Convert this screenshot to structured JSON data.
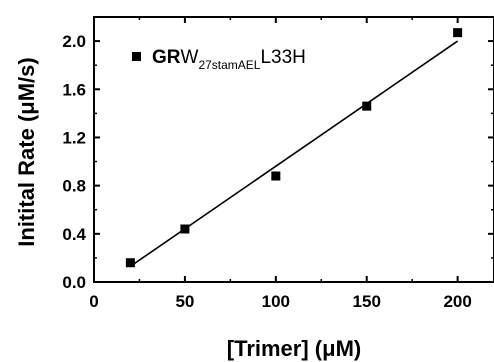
{
  "chart_data": {
    "type": "scatter",
    "xlabel": "[Trimer] (μM)",
    "ylabel": "Initital Rate (μM/s)",
    "xlim": [
      0,
      220
    ],
    "ylim": [
      0,
      2.2
    ],
    "xticks": [
      0,
      50,
      100,
      150,
      200
    ],
    "yticks": [
      0.0,
      0.4,
      0.8,
      1.2,
      1.6,
      2.0
    ],
    "xtick_labels": [
      "0",
      "50",
      "100",
      "150",
      "200"
    ],
    "ytick_labels": [
      "0.0",
      "0.4",
      "0.8",
      "1.2",
      "1.6",
      "2.0"
    ],
    "grid": false,
    "legend_position": "top-left",
    "series": [
      {
        "name_parts": {
          "bold": "GR",
          "main": "W",
          "sub": "27stamAEL",
          "tail": "L33H"
        },
        "marker": "square",
        "x": [
          20,
          50,
          100,
          150,
          200
        ],
        "y": [
          0.16,
          0.44,
          0.88,
          1.46,
          2.07
        ]
      }
    ],
    "fit_line": {
      "x": [
        20,
        200
      ],
      "y": [
        0.13,
        2.0
      ]
    }
  }
}
